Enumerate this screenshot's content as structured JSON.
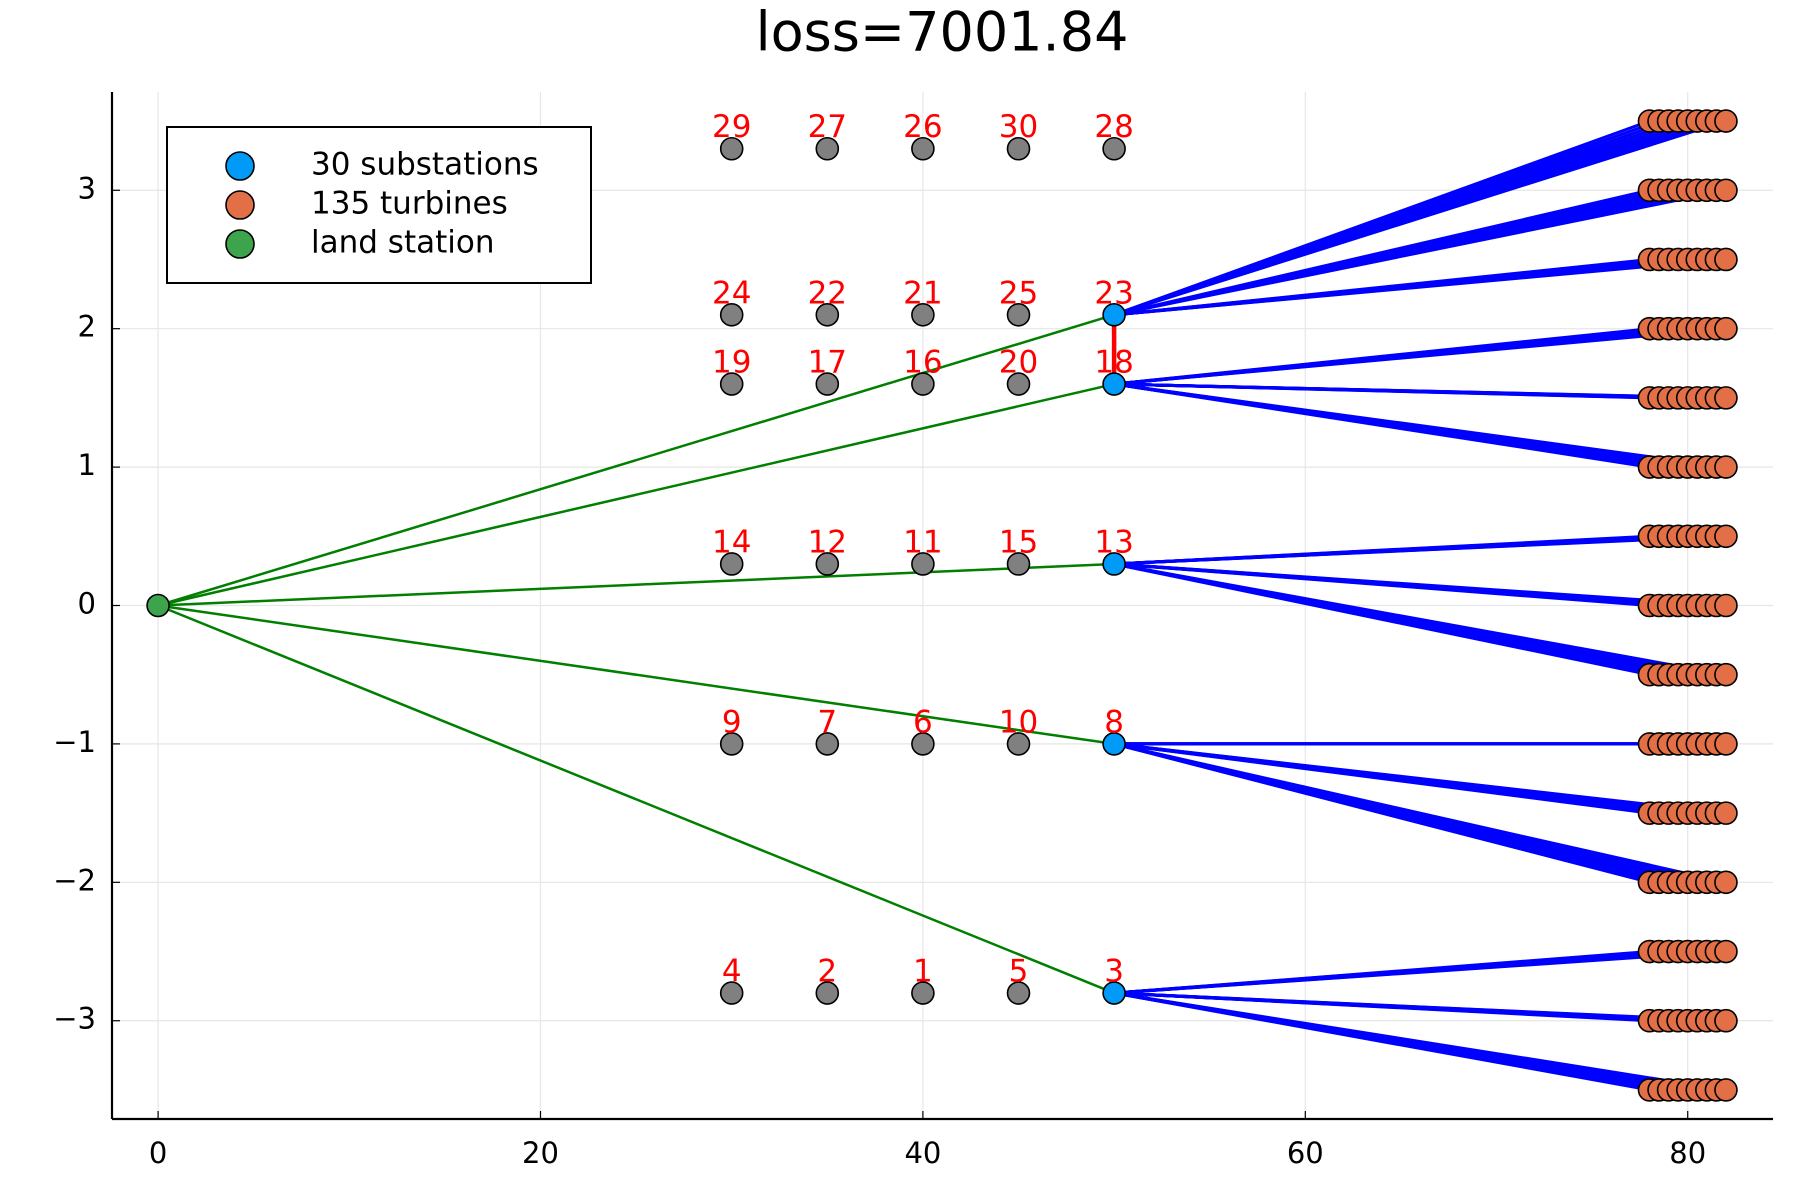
{
  "chart_data": {
    "type": "network-scatter",
    "title": "loss=7001.84",
    "xlim": [
      -2.41,
      84.46
    ],
    "xticks": [
      0,
      20,
      40,
      60,
      80
    ],
    "ylim": [
      -3.71,
      3.71
    ],
    "yticks": [
      {
        "value": -3,
        "label": "−3"
      },
      {
        "value": -2,
        "label": "−2"
      },
      {
        "value": -1,
        "label": "−1"
      },
      0,
      1,
      2,
      3
    ],
    "grid": true,
    "legend": "upper left",
    "series": [
      {
        "name": "30 substations",
        "color": "#009af9",
        "x": [
          30,
          35,
          40,
          45,
          50,
          30,
          35,
          40,
          45,
          50,
          30,
          35,
          40,
          45,
          50,
          30,
          35,
          40,
          45,
          50,
          30,
          35,
          40,
          45,
          50,
          30,
          35,
          40,
          45,
          50
        ],
        "y": [
          3.3,
          3.3,
          3.3,
          3.3,
          3.3,
          2.1,
          2.1,
          2.1,
          2.1,
          2.1,
          1.6,
          1.6,
          1.6,
          1.6,
          1.6,
          0.3,
          0.3,
          0.3,
          0.3,
          0.3,
          -1,
          -1,
          -1,
          -1,
          -1,
          -2.8,
          -2.8,
          -2.8,
          -2.8,
          -2.8
        ],
        "labels": [
          29,
          27,
          26,
          30,
          28,
          24,
          22,
          21,
          25,
          23,
          19,
          17,
          16,
          20,
          18,
          14,
          12,
          11,
          15,
          13,
          9,
          7,
          6,
          10,
          8,
          4,
          2,
          1,
          5,
          3
        ],
        "label_color": "#ff0000",
        "point_colors": [
          "#808080",
          "#808080",
          "#808080",
          "#808080",
          "#808080",
          "#808080",
          "#808080",
          "#808080",
          "#808080",
          "#009af9",
          "#808080",
          "#808080",
          "#808080",
          "#808080",
          "#009af9",
          "#808080",
          "#808080",
          "#808080",
          "#808080",
          "#009af9",
          "#808080",
          "#808080",
          "#808080",
          "#808080",
          "#009af9",
          "#808080",
          "#808080",
          "#808080",
          "#808080",
          "#009af9"
        ],
        "substation_links": [
          [
            23,
            18
          ]
        ],
        "link_color": "#ff0000"
      },
      {
        "name": "135 turbines",
        "color": "#e26f46",
        "cable_color": "#0000ff",
        "x": [
          78,
          78.5,
          79,
          79.5,
          80,
          80.5,
          81,
          81.5,
          82,
          78,
          78.5,
          79,
          79.5,
          80,
          80.5,
          81,
          81.5,
          82,
          78,
          78.5,
          79,
          79.5,
          80,
          80.5,
          81,
          81.5,
          82,
          78,
          78.5,
          79,
          79.5,
          80,
          80.5,
          81,
          81.5,
          82,
          78,
          78.5,
          79,
          79.5,
          80,
          80.5,
          81,
          81.5,
          82,
          78,
          78.5,
          79,
          79.5,
          80,
          80.5,
          81,
          81.5,
          82,
          78,
          78.5,
          79,
          79.5,
          80,
          80.5,
          81,
          81.5,
          82,
          78,
          78.5,
          79,
          79.5,
          80,
          80.5,
          81,
          81.5,
          82,
          78,
          78.5,
          79,
          79.5,
          80,
          80.5,
          81,
          81.5,
          82,
          78,
          78.5,
          79,
          79.5,
          80,
          80.5,
          81,
          81.5,
          82,
          78,
          78.5,
          79,
          79.5,
          80,
          80.5,
          81,
          81.5,
          82,
          78,
          78.5,
          79,
          79.5,
          80,
          80.5,
          81,
          81.5,
          82,
          78,
          78.5,
          79,
          79.5,
          80,
          80.5,
          81,
          81.5,
          82,
          78,
          78.5,
          79,
          79.5,
          80,
          80.5,
          81,
          81.5,
          82,
          78,
          78.5,
          79,
          79.5,
          80,
          80.5,
          81,
          81.5,
          82
        ],
        "y": [
          3.5,
          3.5,
          3.5,
          3.5,
          3.5,
          3.5,
          3.5,
          3.5,
          3.5,
          3,
          3,
          3,
          3,
          3,
          3,
          3,
          3,
          3,
          2.5,
          2.5,
          2.5,
          2.5,
          2.5,
          2.5,
          2.5,
          2.5,
          2.5,
          2,
          2,
          2,
          2,
          2,
          2,
          2,
          2,
          2,
          1.5,
          1.5,
          1.5,
          1.5,
          1.5,
          1.5,
          1.5,
          1.5,
          1.5,
          1,
          1,
          1,
          1,
          1,
          1,
          1,
          1,
          1,
          0.5,
          0.5,
          0.5,
          0.5,
          0.5,
          0.5,
          0.5,
          0.5,
          0.5,
          0,
          0,
          0,
          0,
          0,
          0,
          0,
          0,
          0,
          -0.5,
          -0.5,
          -0.5,
          -0.5,
          -0.5,
          -0.5,
          -0.5,
          -0.5,
          -0.5,
          -1,
          -1,
          -1,
          -1,
          -1,
          -1,
          -1,
          -1,
          -1,
          -1.5,
          -1.5,
          -1.5,
          -1.5,
          -1.5,
          -1.5,
          -1.5,
          -1.5,
          -1.5,
          -2,
          -2,
          -2,
          -2,
          -2,
          -2,
          -2,
          -2,
          -2,
          -2.5,
          -2.5,
          -2.5,
          -2.5,
          -2.5,
          -2.5,
          -2.5,
          -2.5,
          -2.5,
          -3,
          -3,
          -3,
          -3,
          -3,
          -3,
          -3,
          -3,
          -3,
          -3.5,
          -3.5,
          -3.5,
          -3.5,
          -3.5,
          -3.5,
          -3.5,
          -3.5,
          -3.5
        ],
        "substation": [
          23,
          23,
          23,
          23,
          23,
          23,
          23,
          23,
          23,
          23,
          23,
          23,
          23,
          23,
          23,
          23,
          23,
          23,
          23,
          23,
          23,
          23,
          23,
          23,
          23,
          23,
          23,
          18,
          18,
          18,
          18,
          18,
          18,
          18,
          18,
          18,
          18,
          18,
          18,
          18,
          18,
          18,
          18,
          18,
          18,
          18,
          18,
          18,
          18,
          18,
          18,
          18,
          18,
          18,
          13,
          13,
          13,
          13,
          13,
          13,
          13,
          13,
          13,
          13,
          13,
          13,
          13,
          13,
          13,
          13,
          13,
          13,
          13,
          13,
          13,
          13,
          13,
          13,
          13,
          13,
          13,
          8,
          8,
          8,
          8,
          8,
          8,
          8,
          8,
          8,
          8,
          8,
          8,
          8,
          8,
          8,
          8,
          8,
          8,
          8,
          8,
          8,
          8,
          8,
          8,
          8,
          8,
          8,
          3,
          3,
          3,
          3,
          3,
          3,
          3,
          3,
          3,
          3,
          3,
          3,
          3,
          3,
          3,
          3,
          3,
          3,
          3,
          3,
          3,
          3,
          3,
          3,
          3,
          3,
          3
        ]
      },
      {
        "name": "land station",
        "color": "#3da44d",
        "x": [
          0
        ],
        "y": [
          0
        ],
        "links": [
          23,
          18,
          13,
          8,
          3
        ],
        "link_color": "#007f00"
      }
    ]
  }
}
